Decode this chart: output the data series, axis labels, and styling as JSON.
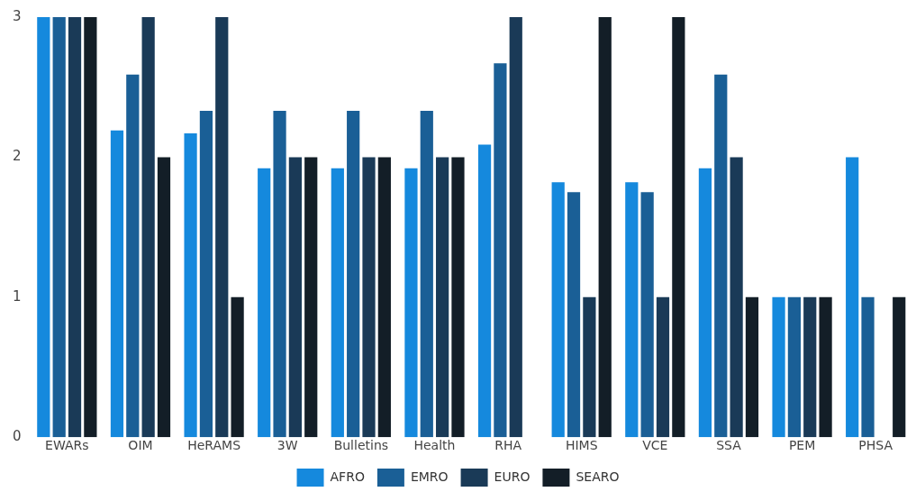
{
  "chart_data": {
    "type": "bar",
    "categories": [
      "EWARs",
      "OIM",
      "HeRAMS",
      "3W",
      "Bulletins",
      "Health",
      "RHA",
      "HIMS",
      "VCE",
      "SSA",
      "PEM",
      "PHSA"
    ],
    "series": [
      {
        "name": "AFRO",
        "color": "#1589dd",
        "values": [
          3,
          2.19,
          2.17,
          1.92,
          1.92,
          1.92,
          2.09,
          1.82,
          1.82,
          1.92,
          1,
          2
        ]
      },
      {
        "name": "EMRO",
        "color": "#1a5f96",
        "values": [
          3,
          2.59,
          2.33,
          2.33,
          2.33,
          2.33,
          2.67,
          1.75,
          1.75,
          2.59,
          1,
          1
        ]
      },
      {
        "name": "EURO",
        "color": "#1a3a57",
        "values": [
          3,
          3,
          3,
          2,
          2,
          2,
          3,
          1,
          1,
          2,
          1,
          0
        ]
      },
      {
        "name": "SEARO",
        "color": "#131e27",
        "values": [
          3,
          2,
          1,
          2,
          2,
          2,
          0,
          3,
          3,
          1,
          1,
          1
        ]
      }
    ],
    "ylim": [
      0,
      3
    ],
    "yticks": [
      0,
      1,
      2,
      3
    ],
    "grid": false,
    "legend": "bottom"
  }
}
